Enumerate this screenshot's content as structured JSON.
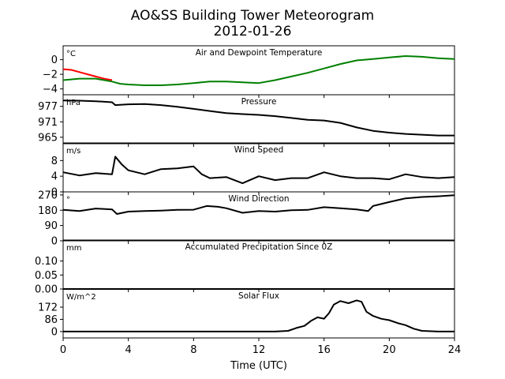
{
  "figure": {
    "title": "AO&SS Building Tower Meteorogram",
    "date": "2012-01-26"
  },
  "chart_data": [
    {
      "type": "line",
      "title": "Air and Dewpoint Temperature",
      "unit": "°C",
      "xlabel": "Time (UTC)",
      "xlim": [
        0,
        24
      ],
      "ylim": [
        -4.8,
        1.9
      ],
      "yticks": [
        0,
        -2,
        -4
      ],
      "ytick_labels": [
        "0",
        "−2",
        "−4"
      ],
      "series": [
        {
          "color": "#ff0000",
          "x": [
            0,
            0.5,
            1,
            1.5,
            2,
            2.5,
            3
          ],
          "values": [
            -1.3,
            -1.4,
            -1.7,
            -2.0,
            -2.3,
            -2.6,
            -2.8
          ]
        },
        {
          "color": "#008000",
          "x": [
            0,
            1,
            2,
            3,
            3.5,
            4,
            5,
            6,
            7,
            8,
            9,
            10,
            11,
            12,
            13,
            14,
            15,
            16,
            17,
            18,
            19,
            20,
            21,
            22,
            23,
            24
          ],
          "values": [
            -2.8,
            -2.6,
            -2.6,
            -3.0,
            -3.3,
            -3.4,
            -3.5,
            -3.5,
            -3.4,
            -3.2,
            -3.0,
            -3.0,
            -3.1,
            -3.2,
            -2.8,
            -2.3,
            -1.8,
            -1.2,
            -0.6,
            -0.1,
            0.1,
            0.3,
            0.5,
            0.4,
            0.2,
            0.1
          ]
        }
      ]
    },
    {
      "type": "line",
      "title": "Pressure",
      "unit": "hPa",
      "xlim": [
        0,
        24
      ],
      "ylim": [
        962.5,
        981.5
      ],
      "yticks": [
        977,
        971,
        965
      ],
      "ytick_labels": [
        "977",
        "971",
        "965"
      ],
      "series": [
        {
          "color": "#000000",
          "x": [
            0,
            1,
            2,
            3,
            3.2,
            4,
            5,
            6,
            7,
            8,
            9,
            10,
            11,
            12,
            13,
            14,
            15,
            16,
            17,
            18,
            19,
            20,
            21,
            22,
            23,
            24
          ],
          "values": [
            979.3,
            979.2,
            979.0,
            978.6,
            977.5,
            977.8,
            977.9,
            977.5,
            976.8,
            976.0,
            975.2,
            974.4,
            974.0,
            973.7,
            973.2,
            972.5,
            971.8,
            971.5,
            970.6,
            968.8,
            967.5,
            966.8,
            966.3,
            966.0,
            965.7,
            965.7
          ]
        }
      ]
    },
    {
      "type": "line",
      "title": "Wind Speed",
      "unit": "m/s",
      "xlim": [
        0,
        24
      ],
      "ylim": [
        0,
        12.5
      ],
      "yticks": [
        8,
        4,
        0
      ],
      "ytick_labels": [
        "8",
        "4",
        "0"
      ],
      "series": [
        {
          "color": "#000000",
          "x": [
            0,
            1,
            2,
            3,
            3.2,
            3.6,
            4,
            5,
            6,
            7,
            8,
            8.5,
            9,
            10,
            11,
            12,
            13,
            14,
            15,
            16,
            17,
            18,
            19,
            20,
            21,
            22,
            23,
            24
          ],
          "values": [
            5.0,
            4.2,
            4.8,
            4.5,
            9.0,
            7.0,
            5.5,
            4.5,
            5.8,
            6.0,
            6.5,
            4.5,
            3.5,
            3.8,
            2.2,
            4.0,
            3.0,
            3.5,
            3.5,
            5.0,
            4.0,
            3.5,
            3.5,
            3.2,
            4.5,
            3.8,
            3.5,
            3.8
          ]
        }
      ]
    },
    {
      "type": "line",
      "title": "Wind Direction",
      "unit": "°",
      "xlim": [
        0,
        24
      ],
      "ylim": [
        0,
        288
      ],
      "yticks": [
        270,
        180,
        90,
        0
      ],
      "ytick_labels": [
        "270",
        "180",
        "90",
        "0"
      ],
      "series": [
        {
          "color": "#000000",
          "x": [
            0,
            1,
            2,
            3,
            3.3,
            4,
            5,
            6,
            7,
            8,
            8.8,
            9.5,
            10,
            11,
            12,
            13,
            14,
            15,
            16,
            17,
            18,
            18.7,
            19,
            20,
            21,
            22,
            23,
            24
          ],
          "values": [
            182,
            175,
            190,
            185,
            158,
            172,
            175,
            178,
            182,
            183,
            205,
            200,
            192,
            165,
            175,
            172,
            180,
            182,
            198,
            192,
            185,
            175,
            205,
            228,
            250,
            258,
            262,
            268
          ]
        }
      ]
    },
    {
      "type": "line",
      "title": "Accumulated Precipitation Since 0Z",
      "unit": "mm",
      "xlim": [
        0,
        24
      ],
      "ylim": [
        0,
        0.175
      ],
      "yticks": [
        0.1,
        0.05,
        0.0
      ],
      "ytick_labels": [
        "0.10",
        "0.05",
        "0.00"
      ],
      "series": [
        {
          "color": "#000000",
          "x": [
            0,
            24
          ],
          "values": [
            0,
            0
          ]
        }
      ]
    },
    {
      "type": "line",
      "title": "Solar Flux",
      "unit": "W/m^2",
      "xlabel": "Time (UTC)",
      "xlim": [
        0,
        24
      ],
      "xticks": [
        0,
        4,
        8,
        12,
        16,
        20,
        24
      ],
      "ylim": [
        -45,
        300
      ],
      "yticks": [
        172,
        86,
        0
      ],
      "ytick_labels": [
        "172",
        "86",
        "0"
      ],
      "series": [
        {
          "color": "#000000",
          "x": [
            0,
            13,
            13.8,
            14.3,
            14.8,
            15.2,
            15.6,
            16.0,
            16.3,
            16.6,
            17.0,
            17.5,
            18.0,
            18.3,
            18.6,
            19.0,
            19.5,
            20.0,
            20.5,
            21.0,
            21.5,
            22.0,
            23.0,
            24.0
          ],
          "values": [
            0,
            0,
            5,
            25,
            40,
            75,
            100,
            90,
            130,
            190,
            215,
            200,
            220,
            210,
            140,
            110,
            90,
            80,
            60,
            45,
            20,
            5,
            0,
            0
          ]
        }
      ]
    }
  ]
}
